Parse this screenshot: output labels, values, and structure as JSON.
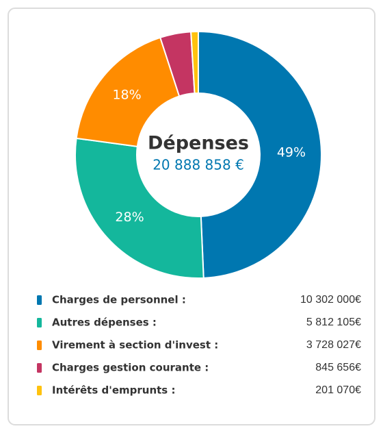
{
  "chart_data": {
    "type": "donut",
    "title": "Dépenses",
    "total": 20888858,
    "total_label": "20 888 858 €",
    "series": [
      {
        "name": "Charges de personnel :",
        "color": "#0077b0",
        "values": [
          10302000
        ],
        "value_labels": [
          "10 302 000€"
        ]
      },
      {
        "name": "Autres dépenses :",
        "color": "#14b79c",
        "values": [
          5812105
        ],
        "value_labels": [
          "5 812 105€"
        ]
      },
      {
        "name": "Virement à section d'invest :",
        "color": "#ff8c00",
        "values": [
          3728027
        ],
        "value_labels": [
          "3 728 027€"
        ]
      },
      {
        "name": "Charges gestion courante :",
        "color": "#c43562",
        "values": [
          845656
        ],
        "value_labels": [
          "845 656€"
        ]
      },
      {
        "name": "Intérêts d'emprunts :",
        "color": "#ffc20e",
        "values": [
          201070
        ],
        "value_labels": [
          "201 070€"
        ]
      }
    ],
    "percentages": [
      49,
      28,
      18,
      null,
      null
    ],
    "percentage_labels": [
      "49%",
      "28%",
      "18%",
      null,
      null
    ]
  }
}
